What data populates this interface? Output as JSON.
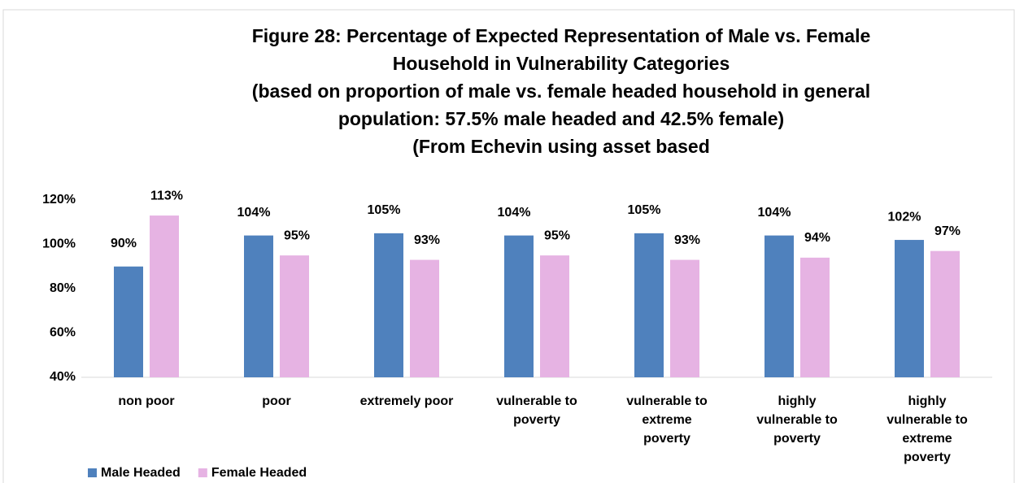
{
  "chart_data": {
    "type": "bar",
    "title_lines": [
      "Figure 28: Percentage of Expected Representation of Male vs. Female",
      "Household in Vulnerability Categories",
      "(based on proportion of  male vs. female headed household in general",
      "population: 57.5% male headed and 42.5% female)",
      "(From Echevin using asset based"
    ],
    "categories": [
      "non poor",
      "poor",
      "extremely poor",
      "vulnerable to poverty",
      "vulnerable to extreme poverty",
      "highly vulnerable to poverty",
      "highly vulnerable to extreme poverty"
    ],
    "series": [
      {
        "name": "Male Headed",
        "color": "#4f81bd",
        "values": [
          90,
          104,
          105,
          104,
          105,
          104,
          102
        ],
        "value_labels": [
          "90%",
          "104%",
          "105%",
          "104%",
          "105%",
          "104%",
          "102%"
        ]
      },
      {
        "name": "Female Headed",
        "color": "#e6b3e3",
        "values": [
          113,
          95,
          93,
          95,
          93,
          94,
          97
        ],
        "value_labels": [
          "113%",
          "95%",
          "93%",
          "95%",
          "93%",
          "94%",
          "97%"
        ]
      }
    ],
    "ylim": [
      40,
      120
    ],
    "yticks": [
      {
        "value": 40,
        "label": "40%"
      },
      {
        "value": 60,
        "label": "60%"
      },
      {
        "value": 80,
        "label": "80%"
      },
      {
        "value": 100,
        "label": "100%"
      },
      {
        "value": 120,
        "label": "120%"
      }
    ],
    "legend": "bottom-left"
  }
}
